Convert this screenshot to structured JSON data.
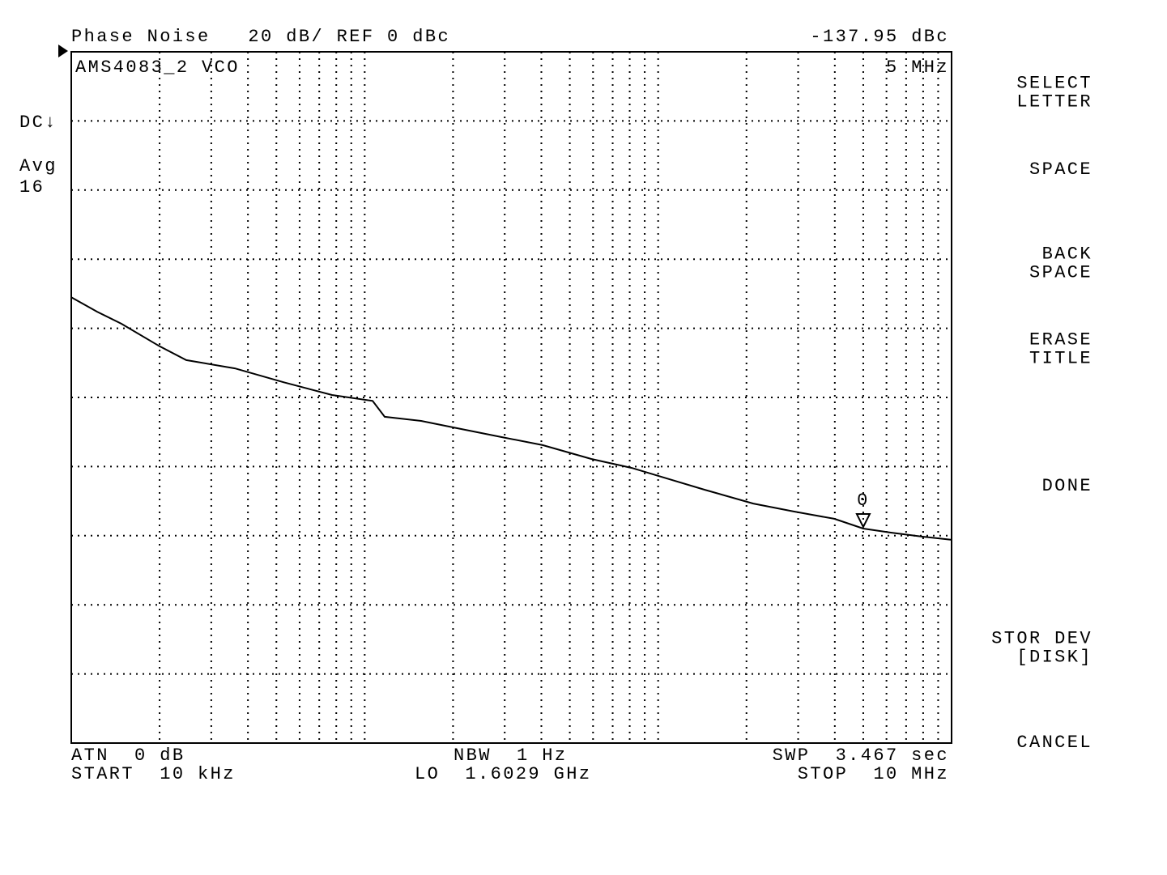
{
  "chart_data": {
    "type": "line",
    "title": "Phase Noise   20 dB/ REF 0 dBc",
    "subtitle": "AMS4083_2 VCO",
    "x": [
      10000,
      12250,
      14830,
      20000,
      24660,
      36110,
      52870,
      77410,
      106400,
      117000,
      155700,
      200900,
      294000,
      404000,
      591600,
      812800,
      1048000,
      1439000,
      2109000,
      2897000,
      3981000,
      5000000,
      6209000,
      8017000,
      10000000
    ],
    "values": [
      -71.0,
      -75.2,
      -78.7,
      -85.2,
      -89.2,
      -91.6,
      -95.6,
      -99.3,
      -101.0,
      -105.6,
      -106.8,
      -108.7,
      -111.5,
      -113.8,
      -117.8,
      -120.4,
      -123.2,
      -126.7,
      -130.7,
      -133.0,
      -135.1,
      -137.95,
      -139.1,
      -140.3,
      -141.2
    ],
    "color": "#000000",
    "xlim": [
      10000,
      10000000
    ],
    "xscale": "log",
    "xticks": [
      10000,
      20000,
      30000,
      40000,
      50000,
      60000,
      70000,
      80000,
      90000,
      100000,
      200000,
      300000,
      400000,
      500000,
      600000,
      700000,
      800000,
      900000,
      1000000,
      2000000,
      3000000,
      4000000,
      5000000,
      6000000,
      7000000,
      8000000,
      9000000,
      10000000
    ],
    "ylim": [
      -200,
      0
    ],
    "yticks": [
      -200,
      -180,
      -160,
      -140,
      -120,
      -100,
      -80,
      -60,
      -40,
      -20,
      0
    ],
    "grid": true,
    "marker": {
      "label": "0",
      "x": 5000000,
      "y": -137.95,
      "readout": "-137.95 dBc",
      "freq_label": "5 MHz"
    }
  },
  "status": {
    "left": [
      "DC↓",
      "Avg",
      "16"
    ],
    "bottom_left": [
      "ATN  0 dB",
      "START  10 kHz"
    ],
    "bottom_center": [
      "NBW  1 Hz",
      "LO  1.6029 GHz"
    ],
    "bottom_right": [
      "SWP  3.467 sec",
      "STOP  10 MHz"
    ]
  },
  "softkeys": [
    [
      "SELECT",
      "LETTER"
    ],
    [
      "SPACE"
    ],
    [
      "BACK",
      "SPACE"
    ],
    [
      "ERASE",
      "TITLE"
    ],
    [
      "DONE"
    ],
    [
      "STOR DEV",
      "[DISK]"
    ],
    [
      "CANCEL"
    ]
  ]
}
